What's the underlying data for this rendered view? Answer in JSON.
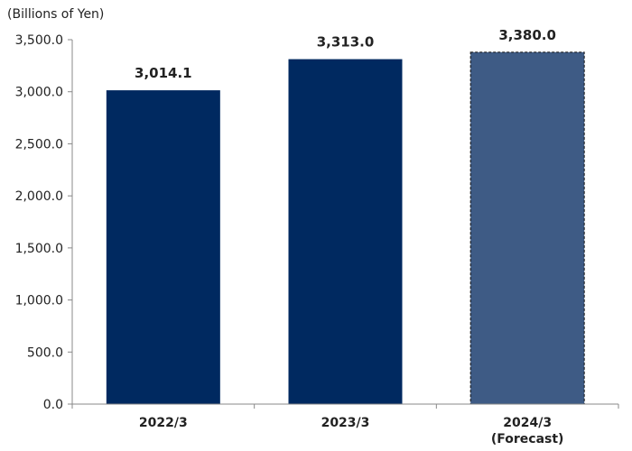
{
  "chart_data": {
    "type": "bar",
    "unit_label": "(Billions of Yen)",
    "categories": [
      {
        "label": "2022/3",
        "sublabel": ""
      },
      {
        "label": "2023/3",
        "sublabel": ""
      },
      {
        "label": "2024/3",
        "sublabel": "(Forecast)"
      }
    ],
    "values": [
      3014.1,
      3313.0,
      3380.0
    ],
    "value_labels": [
      "3,014.1",
      "3,313.0",
      "3,380.0"
    ],
    "forecast": [
      false,
      false,
      true
    ],
    "ylim": [
      0,
      3500
    ],
    "yticks": [
      0,
      500,
      1000,
      1500,
      2000,
      2500,
      3000,
      3500
    ],
    "ytick_labels": [
      "0.0",
      "500.0",
      "1,000.0",
      "1,500.0",
      "2,000.0",
      "2,500.0",
      "3,000.0",
      "3,500.0"
    ],
    "grid": false,
    "colors": {
      "actual": "#002960",
      "forecast": "#3E5B85",
      "axis": "#888888"
    }
  }
}
